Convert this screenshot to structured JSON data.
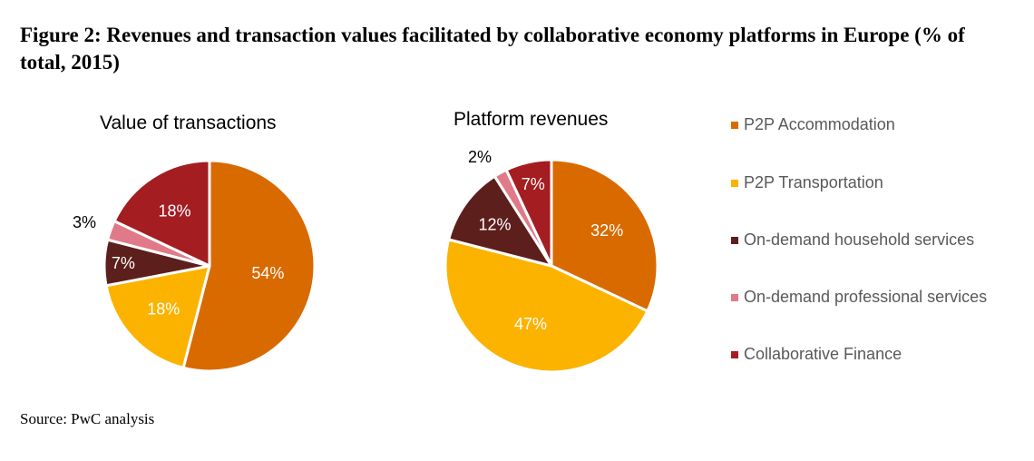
{
  "figure_title": "Figure 2: Revenues and transaction values facilitated by collaborative economy platforms in Europe (% of total, 2015)",
  "source": "Source: PwC analysis",
  "colors": {
    "p2p_accommodation": "#D96A00",
    "p2p_transportation": "#FBB300",
    "household_services": "#5C1F1C",
    "professional_services": "#E07A89",
    "collaborative_finance": "#A31D21"
  },
  "legend": [
    {
      "key": "p2p_accommodation",
      "label": "P2P Accommodation"
    },
    {
      "key": "p2p_transportation",
      "label": "P2P Transportation"
    },
    {
      "key": "household_services",
      "label": "On-demand household services"
    },
    {
      "key": "professional_services",
      "label": "On-demand professional services"
    },
    {
      "key": "collaborative_finance",
      "label": "Collaborative Finance"
    }
  ],
  "chart_data": [
    {
      "type": "pie",
      "title": "Value of transactions",
      "slices": [
        {
          "key": "p2p_accommodation",
          "label": "54%",
          "value": 54
        },
        {
          "key": "p2p_transportation",
          "label": "18%",
          "value": 18
        },
        {
          "key": "household_services",
          "label": "7%",
          "value": 7
        },
        {
          "key": "professional_services",
          "label": "3%",
          "value": 3
        },
        {
          "key": "collaborative_finance",
          "label": "18%",
          "value": 18
        }
      ]
    },
    {
      "type": "pie",
      "title": "Platform revenues",
      "slices": [
        {
          "key": "p2p_accommodation",
          "label": "32%",
          "value": 32
        },
        {
          "key": "p2p_transportation",
          "label": "47%",
          "value": 47
        },
        {
          "key": "household_services",
          "label": "12%",
          "value": 12
        },
        {
          "key": "professional_services",
          "label": "2%",
          "value": 2
        },
        {
          "key": "collaborative_finance",
          "label": "7%",
          "value": 7
        }
      ]
    }
  ]
}
